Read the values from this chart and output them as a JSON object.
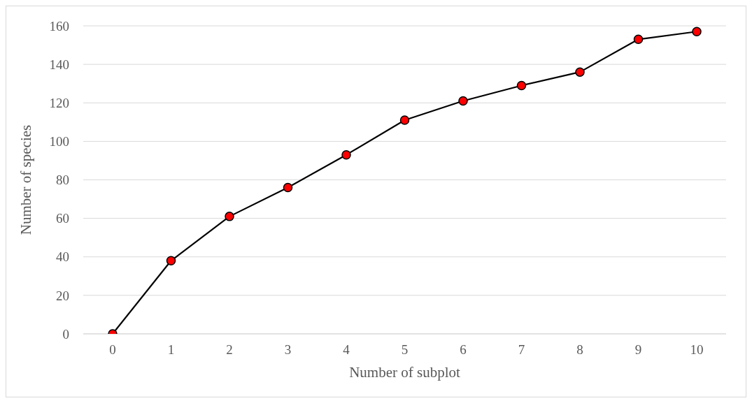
{
  "chart_data": {
    "type": "line",
    "xlabel": "Number of subplot",
    "ylabel": "Number of species",
    "categories": [
      "0",
      "1",
      "2",
      "3",
      "4",
      "5",
      "6",
      "7",
      "8",
      "9",
      "10"
    ],
    "series": [
      {
        "color": "#000000",
        "colors": [
          "#ff0000",
          "#ff0000",
          "#ff0000",
          "#ff0000",
          "#ff0000",
          "#ff0000",
          "#ff0000",
          "#ff0000",
          "#ff0000",
          "#ff0000",
          "#ff0000"
        ],
        "values": [
          0,
          38,
          61,
          76,
          93,
          111,
          121,
          129,
          136,
          153,
          157
        ]
      }
    ],
    "ylim": [
      0,
      160
    ],
    "yticks": [
      0,
      20,
      40,
      60,
      80,
      100,
      120,
      140,
      160
    ],
    "grid": "y",
    "marker": "circle",
    "line_style": "solid",
    "legend": false
  }
}
